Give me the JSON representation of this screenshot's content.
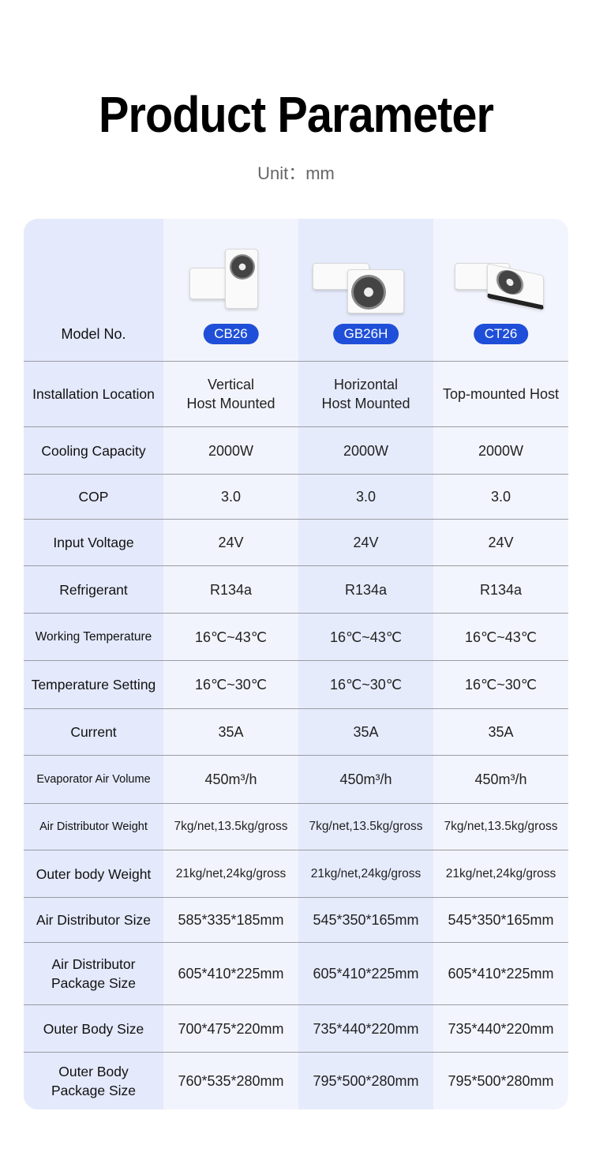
{
  "header": {
    "title": "Product Parameter",
    "unit": "Unit：mm"
  },
  "colors": {
    "accent": "#1f4fd8"
  },
  "table": {
    "model_label": "Model No.",
    "models": [
      "CB26",
      "GB26H",
      "CT26"
    ],
    "rows": [
      {
        "label": "Installation Location",
        "values": [
          [
            "Vertical",
            "Host Mounted"
          ],
          [
            "Horizontal",
            "Host Mounted"
          ],
          [
            "Top-mounted Host"
          ]
        ]
      },
      {
        "label": "Cooling Capacity",
        "values": [
          "2000W",
          "2000W",
          "2000W"
        ]
      },
      {
        "label": "COP",
        "values": [
          "3.0",
          "3.0",
          "3.0"
        ]
      },
      {
        "label": "Input Voltage",
        "values": [
          "24V",
          "24V",
          "24V"
        ]
      },
      {
        "label": "Refrigerant",
        "values": [
          "R134a",
          "R134a",
          "R134a"
        ]
      },
      {
        "label": "Working Temperature",
        "values": [
          "16℃~43℃",
          "16℃~43℃",
          "16℃~43℃"
        ]
      },
      {
        "label": "Temperature Setting",
        "values": [
          "16℃~30℃",
          "16℃~30℃",
          "16℃~30℃"
        ]
      },
      {
        "label": "Current",
        "values": [
          "35A",
          "35A",
          "35A"
        ]
      },
      {
        "label": "Evaporator Air Volume",
        "values": [
          "450m³/h",
          "450m³/h",
          "450m³/h"
        ]
      },
      {
        "label": "Air Distributor Weight",
        "values": [
          "7kg/net,13.5kg/gross",
          "7kg/net,13.5kg/gross",
          "7kg/net,13.5kg/gross"
        ]
      },
      {
        "label": "Outer body Weight",
        "values": [
          "21kg/net,24kg/gross",
          "21kg/net,24kg/gross",
          "21kg/net,24kg/gross"
        ]
      },
      {
        "label": "Air Distributor Size",
        "values": [
          "585*335*185mm",
          "545*350*165mm",
          "545*350*165mm"
        ]
      },
      {
        "label": [
          "Air Distributor",
          "Package Size"
        ],
        "values": [
          "605*410*225mm",
          "605*410*225mm",
          "605*410*225mm"
        ]
      },
      {
        "label": "Outer Body Size",
        "values": [
          "700*475*220mm",
          "735*440*220mm",
          "735*440*220mm"
        ]
      },
      {
        "label": [
          "Outer Body",
          "Package Size"
        ],
        "values": [
          "760*535*280mm",
          "795*500*280mm",
          "795*500*280mm"
        ]
      }
    ]
  }
}
